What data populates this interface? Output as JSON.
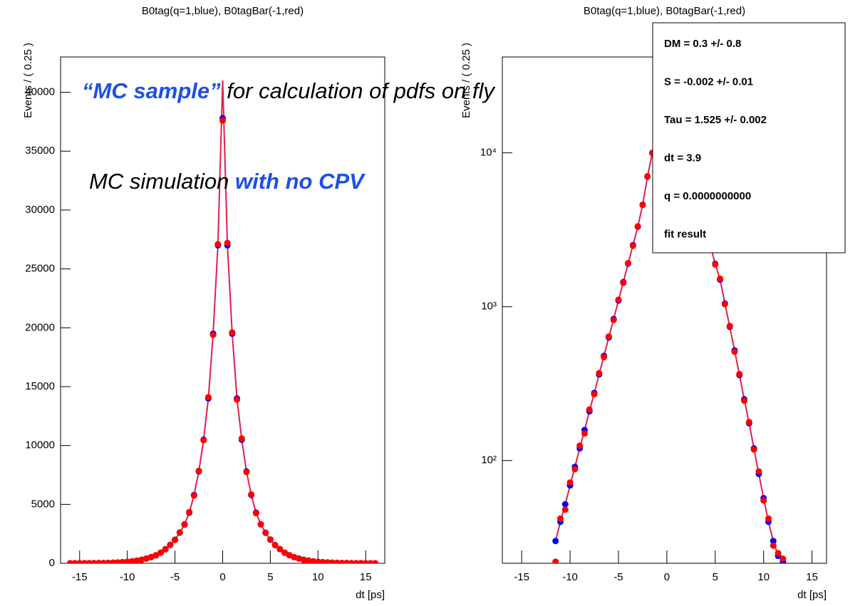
{
  "chart_data": [
    {
      "type": "scatter",
      "title": "B0tag(q=1,blue), B0tagBar(-1,red)",
      "x_label": "dt [ps]",
      "y_label": "Events / ( 0.25 )",
      "xlim": [
        -17,
        17
      ],
      "xticks": [
        -15,
        -10,
        -5,
        0,
        5,
        10,
        15
      ],
      "ylim": [
        0,
        43000
      ],
      "yticks": [
        0,
        5000,
        10000,
        15000,
        20000,
        25000,
        30000,
        35000,
        40000
      ],
      "log_y": false,
      "x": [
        -16,
        -15.5,
        -15,
        -14.5,
        -14,
        -13.5,
        -13,
        -12.5,
        -12,
        -11.5,
        -11,
        -10.5,
        -10,
        -9.5,
        -9,
        -8.5,
        -8,
        -7.5,
        -7,
        -6.5,
        -6,
        -5.5,
        -5,
        -4.5,
        -4,
        -3.5,
        -3,
        -2.5,
        -2,
        -1.5,
        -1,
        -0.5,
        0,
        0.5,
        1,
        1.5,
        2,
        2.5,
        3,
        3.5,
        4,
        4.5,
        5,
        5.5,
        6,
        6.5,
        7,
        7.5,
        8,
        8.5,
        9,
        9.5,
        10,
        10.5,
        11,
        11.5,
        12,
        12.5,
        13,
        13.5,
        14,
        14.5,
        15,
        15.5,
        16
      ],
      "series": [
        {
          "color": "#0000ff",
          "mode": "points",
          "values": [
            1,
            2,
            3,
            5,
            8,
            12,
            18,
            25,
            35,
            50,
            70,
            95,
            130,
            170,
            230,
            300,
            400,
            520,
            680,
            900,
            1200,
            1550,
            2000,
            2600,
            3300,
            4300,
            5800,
            7800,
            10500,
            14000,
            19500,
            27000,
            37800,
            27000,
            19500,
            14000,
            10500,
            7800,
            5800,
            4300,
            3300,
            2600,
            2000,
            1550,
            1200,
            900,
            680,
            520,
            400,
            300,
            230,
            170,
            130,
            95,
            70,
            50,
            35,
            25,
            18,
            12,
            8,
            5,
            3,
            2,
            1
          ]
        },
        {
          "color": "#ff0000",
          "mode": "points",
          "values": [
            2,
            2,
            4,
            5,
            9,
            11,
            19,
            26,
            33,
            52,
            68,
            97,
            128,
            175,
            225,
            305,
            395,
            530,
            670,
            910,
            1180,
            1570,
            1980,
            2620,
            3280,
            4350,
            5750,
            7850,
            10450,
            14100,
            19400,
            27100,
            37600,
            27200,
            19600,
            13900,
            10600,
            7750,
            5850,
            4250,
            3320,
            2580,
            2020,
            1540,
            1210,
            890,
            690,
            515,
            405,
            295,
            235,
            165,
            132,
            92,
            72,
            48,
            36,
            24,
            19,
            11,
            9,
            4,
            3,
            2,
            1
          ]
        },
        {
          "color": "#e0204a",
          "mode": "line",
          "values": [
            1,
            2,
            3,
            5,
            8,
            12,
            18,
            25,
            35,
            50,
            70,
            95,
            130,
            170,
            230,
            300,
            400,
            520,
            680,
            900,
            1200,
            1550,
            2000,
            2600,
            3300,
            4300,
            5800,
            7800,
            10500,
            14000,
            19500,
            27000,
            41000,
            27000,
            19500,
            14000,
            10500,
            7800,
            5800,
            4300,
            3300,
            2600,
            2000,
            1550,
            1200,
            900,
            680,
            520,
            400,
            300,
            230,
            170,
            130,
            95,
            70,
            50,
            35,
            25,
            18,
            12,
            8,
            5,
            3,
            2,
            1
          ]
        }
      ]
    },
    {
      "type": "scatter",
      "title": "B0tag(q=1,blue), B0tagBar(-1,red)",
      "x_label": "dt [ps]",
      "y_label": "Events / ( 0.25 )",
      "xlim": [
        -17,
        16.5
      ],
      "xticks": [
        -15,
        -10,
        -5,
        0,
        5,
        10,
        15
      ],
      "ylim": [
        21.5,
        42000
      ],
      "yticks": [
        {
          "value": 100,
          "label": "10²"
        },
        {
          "value": 1000,
          "label": "10³"
        },
        {
          "value": 10000,
          "label": "10⁴"
        }
      ],
      "log_y": true,
      "x": [
        -11.5,
        -11,
        -10.5,
        -10,
        -9.5,
        -9,
        -8.5,
        -8,
        -7.5,
        -7,
        -6.5,
        -6,
        -5.5,
        -5,
        -4.5,
        -4,
        -3.5,
        -3,
        -2.5,
        -2,
        -1.5,
        -1,
        -0.5,
        0,
        0.5,
        1,
        1.5,
        2,
        2.5,
        3,
        3.5,
        4,
        4.5,
        5,
        5.5,
        6,
        6.5,
        7,
        7.5,
        8,
        8.5,
        9,
        9.5,
        10,
        10.5,
        11,
        11.5,
        12
      ],
      "series": [
        {
          "color": "#0000ff",
          "mode": "points",
          "values": [
            30,
            40,
            52,
            69,
            91,
            120,
            158,
            209,
            275,
            363,
            479,
            631,
            832,
            1096,
            1445,
            1905,
            2512,
            3311,
            4600,
            7000,
            10000,
            14000,
            20000,
            28000,
            21000,
            16000,
            12200,
            9400,
            7100,
            5400,
            4200,
            3200,
            2500,
            1900,
            1500,
            1050,
            740,
            520,
            360,
            250,
            175,
            120,
            82,
            57,
            40,
            30,
            24,
            22
          ]
        },
        {
          "color": "#ff0000",
          "mode": "points",
          "values": [
            22,
            42,
            48,
            72,
            88,
            125,
            150,
            215,
            270,
            370,
            470,
            640,
            820,
            1110,
            1430,
            1920,
            2490,
            3330,
            4580,
            7050,
            9950,
            14100,
            19900,
            27900,
            21100,
            15900,
            12300,
            9350,
            7150,
            5350,
            4250,
            3180,
            2520,
            1880,
            1520,
            1040,
            750,
            510,
            365,
            245,
            178,
            118,
            85,
            55,
            42,
            28,
            25,
            23
          ]
        },
        {
          "color": "#e0204a",
          "mode": "line",
          "values": [
            30,
            40,
            52,
            69,
            91,
            120,
            158,
            209,
            275,
            363,
            479,
            631,
            832,
            1096,
            1445,
            1905,
            2512,
            3311,
            4600,
            7000,
            10000,
            14000,
            20000,
            28000,
            21000,
            16000,
            12200,
            9400,
            7100,
            5400,
            4200,
            3200,
            2500,
            1900,
            1500,
            1050,
            740,
            520,
            360,
            250,
            175,
            120,
            82,
            57,
            40,
            30,
            24,
            22
          ]
        }
      ],
      "stat_box": [
        "DM =  0.3 +/- 0.8",
        "S = -0.002 +/- 0.01",
        "Tau =  1.525 +/- 0.002",
        "dt =  3.9",
        "q =  0.0000000000",
        "fit result"
      ]
    }
  ],
  "overlay": {
    "line1": [
      "“MC sample”",
      " for calculation of pdfs on fly"
    ],
    "line2": [
      "MC simulation ",
      "with no CPV"
    ]
  }
}
